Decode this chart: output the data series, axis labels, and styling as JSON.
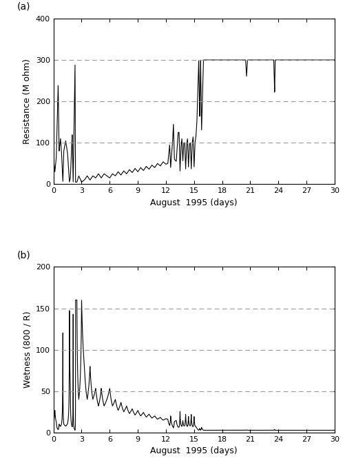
{
  "title_a": "(a)",
  "title_b": "(b)",
  "xlabel": "August  1995 (days)",
  "ylabel_a": "Resistance (M ohm)",
  "ylabel_b": "Wetness (800 / R)",
  "xlim": [
    0,
    30
  ],
  "ylim_a": [
    0,
    400
  ],
  "ylim_b": [
    0,
    200
  ],
  "xticks": [
    0,
    3,
    6,
    9,
    12,
    15,
    18,
    21,
    24,
    27,
    30
  ],
  "yticks_a": [
    0,
    100,
    200,
    300,
    400
  ],
  "yticks_b": [
    0,
    50,
    100,
    150,
    200
  ],
  "hlines_a": [
    100,
    200,
    300
  ],
  "hlines_b": [
    50,
    100,
    150
  ],
  "line_color": "#000000",
  "hline_color": "#999999",
  "bg_color": "#ffffff"
}
